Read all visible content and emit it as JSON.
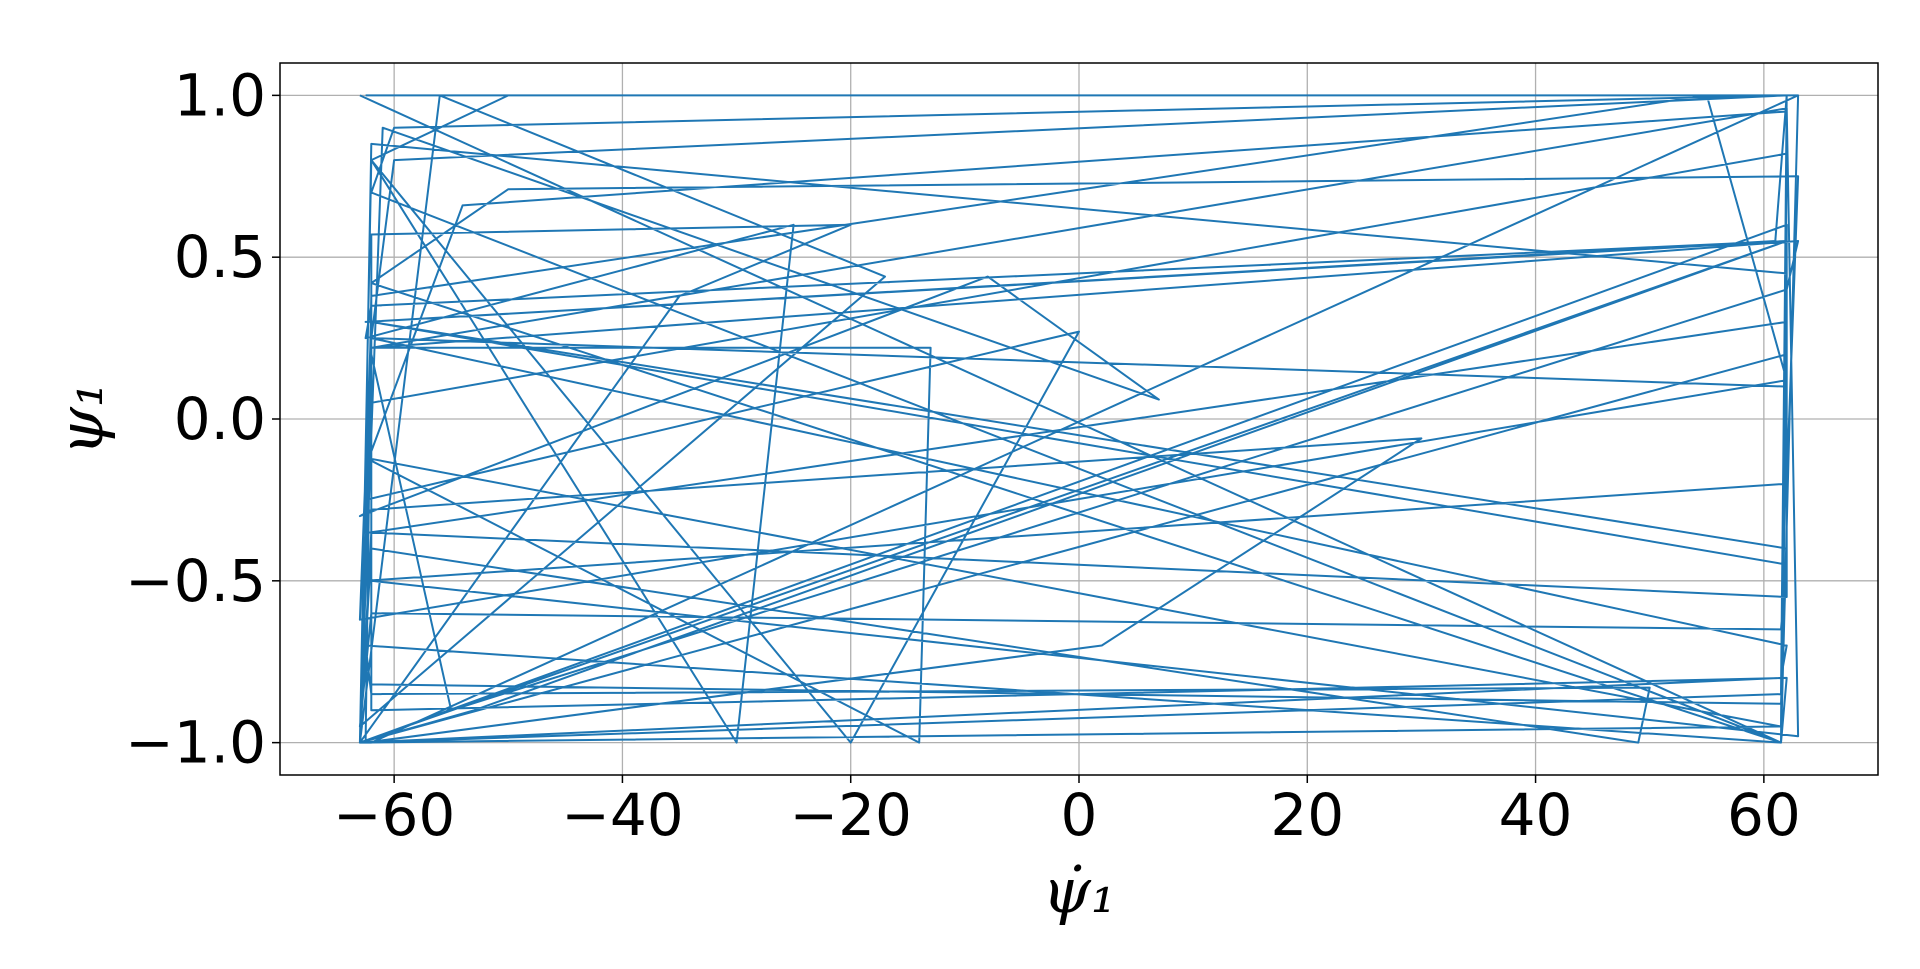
{
  "chart_data": {
    "type": "line",
    "title": "",
    "xlabel": "ψ̇₁",
    "ylabel": "ψ₁",
    "xlim": [
      -70,
      70
    ],
    "ylim": [
      -1.1,
      1.1
    ],
    "grid": true,
    "legend": "none",
    "x_ticks": [
      -60,
      -40,
      -20,
      0,
      20,
      40,
      60
    ],
    "x_tick_labels": [
      "−60",
      "−40",
      "−20",
      "0",
      "20",
      "40",
      "60"
    ],
    "y_ticks": [
      1.0,
      0.5,
      0.0,
      -0.5,
      -1.0
    ],
    "y_tick_labels": [
      "1.0",
      "0.5",
      "0.0",
      "−0.5",
      "−1.0"
    ],
    "colors": {
      "series": "#1f77b4",
      "grid": "#b0b0b0"
    },
    "series": [
      {
        "x": [
          -62.5,
          -62,
          61.5,
          63,
          -62,
          -63,
          61.5,
          62,
          -62,
          -60,
          62,
          61,
          -62.5,
          62,
          62,
          -63,
          -53,
          62,
          -62,
          -62.5,
          -25,
          -30,
          -62,
          -50,
          63,
          61.5,
          -62,
          -60,
          62,
          61.5,
          -62.5,
          -62,
          -54,
          62,
          61.5,
          -63,
          -62,
          -55,
          62,
          63,
          -62,
          -62.5,
          0,
          -20,
          -62,
          -63,
          61.5,
          62,
          -62,
          -62,
          -13,
          -14,
          -62.5,
          -62,
          62,
          62,
          -63,
          -61,
          7,
          -8,
          -63,
          -62,
          30,
          2,
          -62.5,
          -62,
          62,
          61.5,
          -62,
          -63,
          -17,
          -56,
          -63,
          -62,
          62,
          61.5,
          -62,
          -50,
          63,
          62,
          -62.5,
          -62,
          55,
          62,
          -63,
          -62,
          62,
          61.5,
          -62,
          -62,
          -20,
          -35,
          -63,
          -62,
          62,
          61.5,
          -62.5,
          -62,
          50,
          49,
          -62,
          -63,
          62,
          62,
          -62.5,
          -62,
          62,
          63,
          -62,
          -62,
          62,
          61.5,
          -63
        ]
      }
    ]
  }
}
